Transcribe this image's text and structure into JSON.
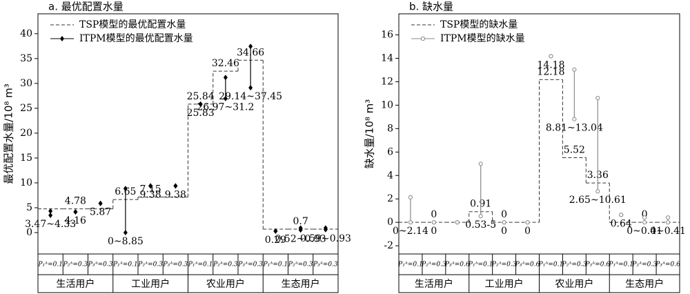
{
  "chart_data": [
    {
      "type": "interval",
      "title": "a. 最优配置水量",
      "ylabel": "最优配置水量/10⁸ m³",
      "ylim": [
        -4.3,
        44
      ],
      "yticks": [
        0,
        5,
        10,
        15,
        20,
        25,
        30,
        35,
        40
      ],
      "categories": [
        "P₁ᴬ=0.1",
        "P₂ᴬ=0.3",
        "P₃ᴬ=0.3",
        "P₁ᴬ=0.1",
        "P₂ᴬ=0.3",
        "P₃ᴬ=0.3",
        "P₁ᴬ=0.1",
        "P₂ᴬ=0.3",
        "P₃ᴬ=0.3",
        "P₁ᴬ=0.1",
        "P₂ᴬ=0.3",
        "P₃ᴬ=0.3"
      ],
      "groups": [
        "生活用户",
        "工业用户",
        "农业用户",
        "生态用户"
      ],
      "series": [
        {
          "name": "TSP模型的最优配置水量",
          "kind": "step",
          "color": "#333333",
          "values": [
            4.78,
            4.78,
            4.78,
            6.65,
            7.15,
            7.15,
            25.84,
            32.46,
            34.66,
            0.7,
            0.7,
            0.7
          ],
          "value_labels": [
            null,
            "4.78",
            null,
            "6.65",
            "7.15",
            null,
            "25.84",
            "32.46",
            "34.66",
            null,
            "0.7",
            null
          ]
        },
        {
          "name": "ITPM模型的最优配置水量",
          "kind": "range",
          "marker": "diamond",
          "color": "#000000",
          "low": [
            3.47,
            4.16,
            5.87,
            0,
            9.38,
            9.38,
            25.83,
            26.97,
            29.14,
            0.29,
            0.52,
            0.59
          ],
          "high": [
            4.33,
            4.16,
            5.87,
            8.85,
            9.38,
            9.38,
            25.83,
            31.2,
            37.45,
            0.29,
            0.93,
            0.93
          ],
          "value_labels": [
            "3.47~4.33",
            "4.16",
            "5.87",
            "0~8.85",
            "9.38",
            "9.38",
            "25.83",
            "26.97~31.2",
            "29.14~37.45",
            "0.29",
            "0.52~0.93",
            "0.59~0.93"
          ]
        }
      ]
    },
    {
      "type": "interval",
      "title": "b. 缺水量",
      "ylabel": "缺水量/10⁸ m³",
      "ylim": [
        -2.7,
        17.8
      ],
      "yticks": [
        -2,
        0,
        2,
        4,
        6,
        8,
        10,
        12,
        14,
        16
      ],
      "categories": [
        "P₁ᴬ=0.1",
        "P₂ᴬ=0.3",
        "P₃ᴬ=0.6",
        "P₁ᴬ=0.1",
        "P₂ᴬ=0.3",
        "P₃ᴬ=0.6",
        "P₁ᴬ=0.1",
        "P₂ᴬ=0.3",
        "P₃ᴬ=0.6",
        "P₁ᴬ=0.1",
        "P₂ᴬ=0.3",
        "P₃ᴬ=0.6"
      ],
      "groups": [
        "生活用户",
        "工业用户",
        "农业用户",
        "生态用户"
      ],
      "series": [
        {
          "name": "TSP模型的缺水量",
          "kind": "step",
          "color": "#333333",
          "values": [
            0,
            0,
            0,
            0.91,
            0,
            0,
            12.18,
            5.52,
            3.36,
            0,
            0,
            0
          ],
          "value_labels": [
            null,
            "0",
            null,
            "0.91",
            "0",
            null,
            "12.18",
            "5.52",
            "3.36",
            null,
            "0",
            null
          ]
        },
        {
          "name": "ITPM模型的缺水量",
          "kind": "range",
          "marker": "circle",
          "color": "#888888",
          "low": [
            0,
            0,
            0,
            0.53,
            0,
            0,
            14.18,
            8.81,
            2.65,
            0.64,
            0,
            0
          ],
          "high": [
            2.14,
            0,
            0,
            5,
            0,
            0,
            14.18,
            13.04,
            10.61,
            0.64,
            0.41,
            0.41
          ],
          "value_labels": [
            "0~2.14",
            "0",
            null,
            "0.53-5",
            "0",
            "0",
            "14.18",
            "8.81~13.04",
            "2.65~10.61",
            "0.64",
            "0~0.41",
            "0~0.41"
          ]
        }
      ]
    }
  ]
}
